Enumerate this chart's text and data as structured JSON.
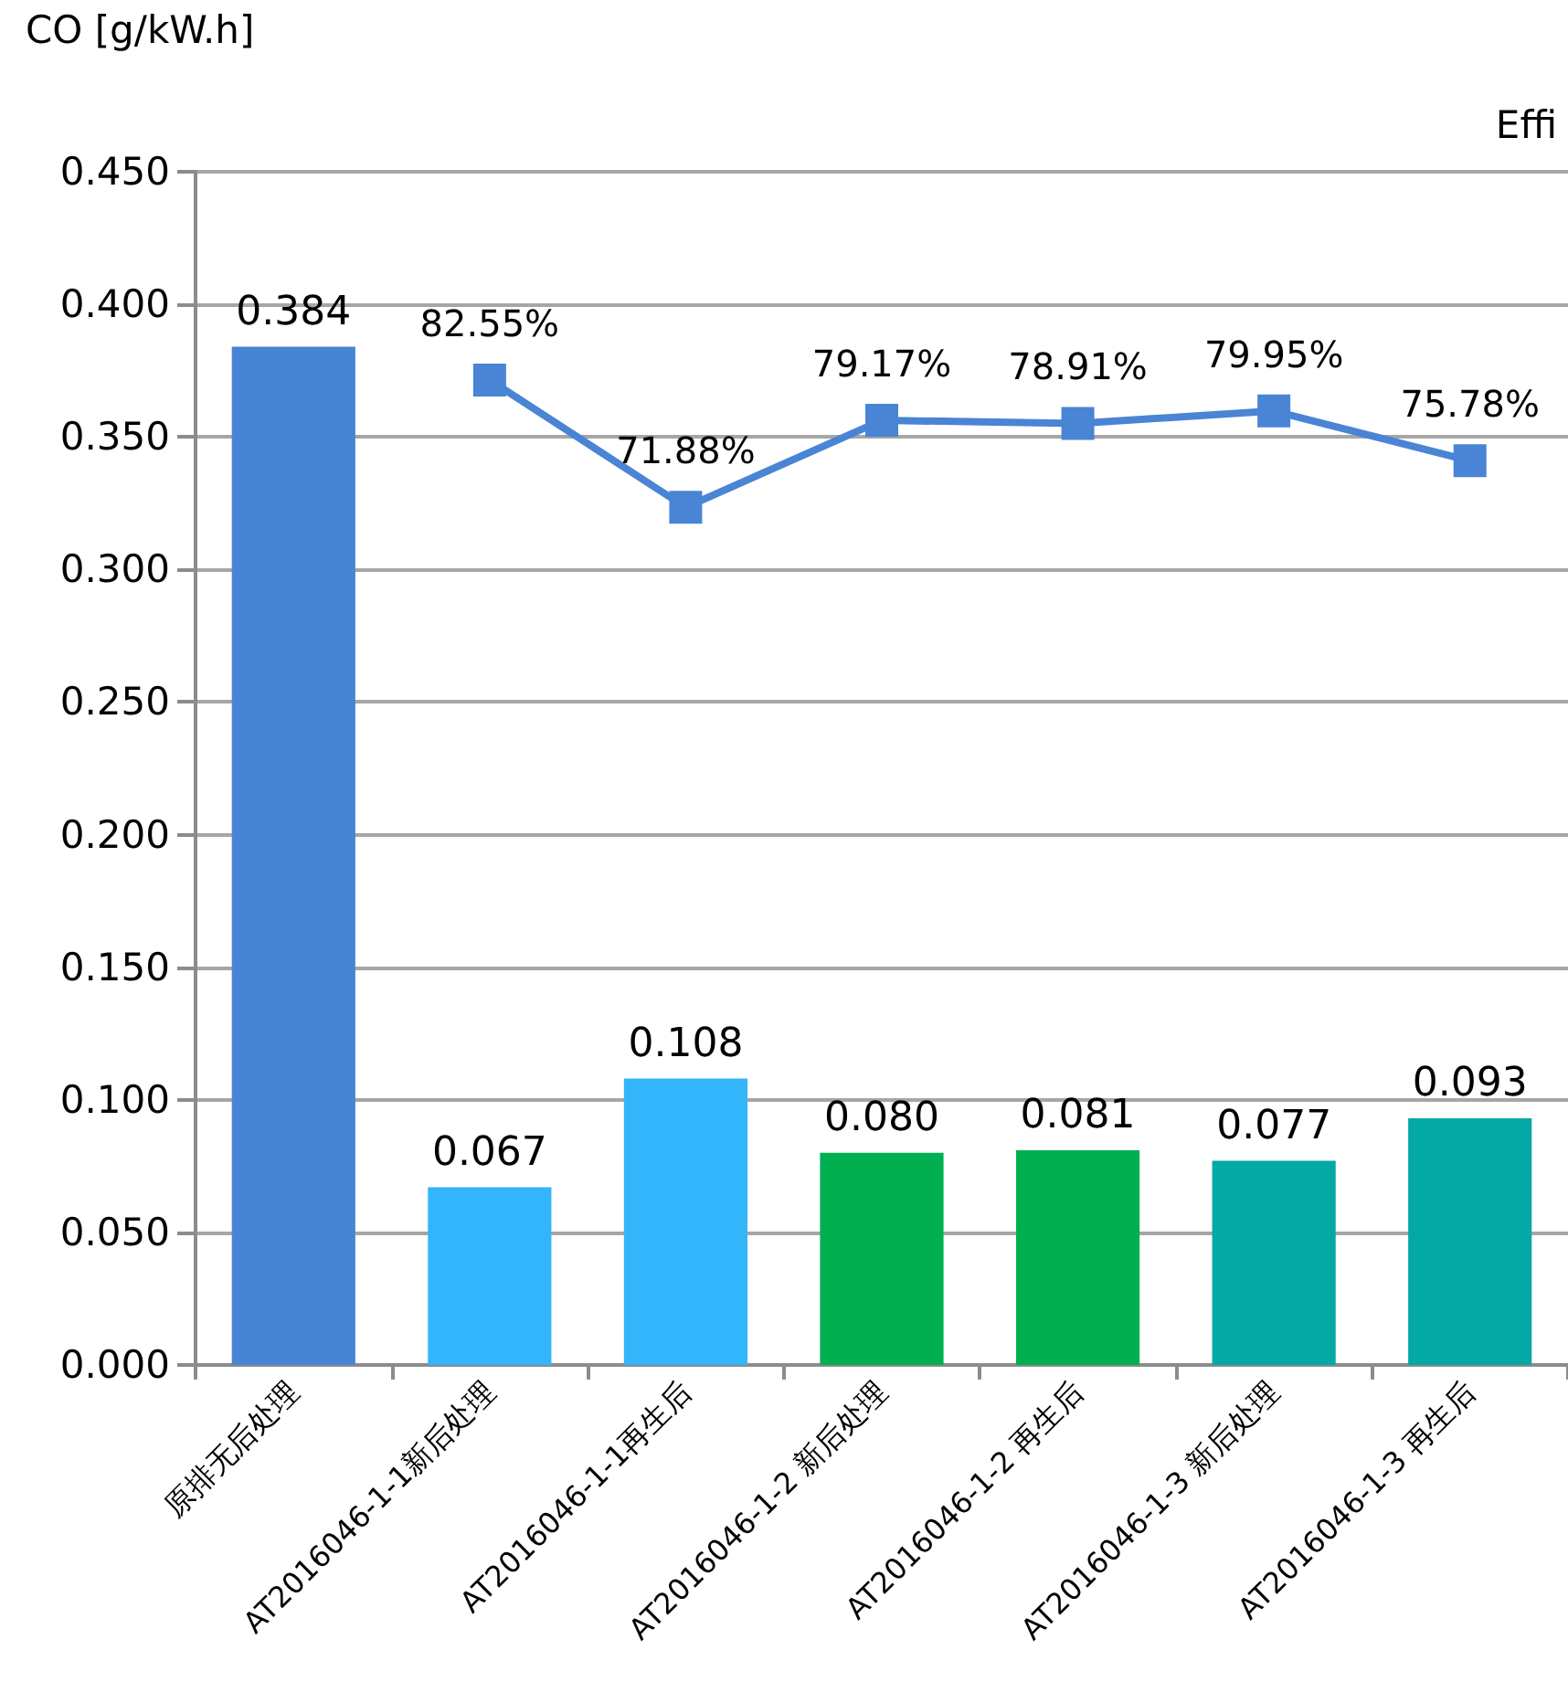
{
  "chart_data": {
    "type": "bar",
    "ylabel": "CO [g/kW.h]",
    "y2label": "Effi",
    "categories": [
      "原排无后处理",
      "AT2016046-1-1新后处理",
      "AT2016046-1-1再生后",
      "AT2016046-1-2 新后处理",
      "AT2016046-1-2 再生后",
      "AT2016046-1-3 新后处理",
      "AT2016046-1-3 再生后"
    ],
    "series": [
      {
        "colors": [
          "#4884d4",
          "#33b5fb",
          "#33b5fb",
          "#00b050",
          "#00b050",
          "#04a9a6",
          "#04a9a6"
        ],
        "values": [
          0.384,
          0.067,
          0.108,
          0.08,
          0.081,
          0.077,
          0.093
        ],
        "value_labels": [
          "0.384",
          "0.067",
          "0.108",
          "0.080",
          "0.081",
          "0.077",
          "0.093"
        ]
      },
      {
        "type": "line",
        "axis": "y2",
        "color": "#4a84d4",
        "values": [
          null,
          82.55,
          71.88,
          79.17,
          78.91,
          79.95,
          75.78
        ],
        "value_labels": [
          null,
          "82.55%",
          "71.88%",
          "79.17%",
          "78.91%",
          "79.95%",
          "75.78%"
        ]
      }
    ],
    "ylim": [
      0,
      0.45
    ],
    "yticks": [
      {
        "value": 0,
        "label": "0.000"
      },
      {
        "value": 0.05,
        "label": "0.050"
      },
      {
        "value": 0.1,
        "label": "0.100"
      },
      {
        "value": 0.15,
        "label": "0.150"
      },
      {
        "value": 0.2,
        "label": "0.200"
      },
      {
        "value": 0.25,
        "label": "0.250"
      },
      {
        "value": 0.3,
        "label": "0.300"
      },
      {
        "value": 0.35,
        "label": "0.350"
      },
      {
        "value": 0.4,
        "label": "0.400"
      },
      {
        "value": 0.45,
        "label": "0.450"
      }
    ],
    "y2lim": [
      0,
      100
    ],
    "grid": "y",
    "marker": "square",
    "line_style": "solid"
  }
}
